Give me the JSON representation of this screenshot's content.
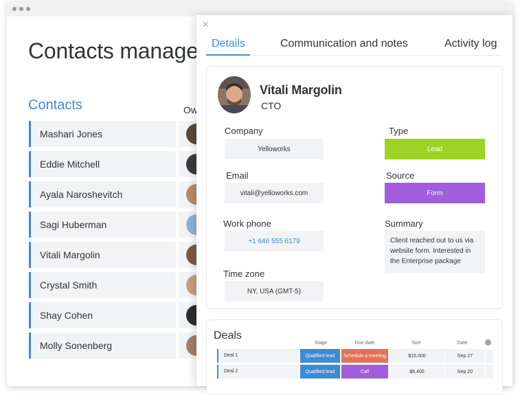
{
  "app": {
    "page_title": "Contacts manager"
  },
  "contacts": {
    "heading": "Contacts",
    "owner_column": "Ow",
    "items": [
      {
        "name": "Mashari Jones",
        "avatar_color": "#5b4a3c"
      },
      {
        "name": "Eddie Mitchell",
        "avatar_color": "#3a3a3a"
      },
      {
        "name": "Ayala Naroshevitch",
        "avatar_color": "#b98a6a"
      },
      {
        "name": "Sagi Huberman",
        "avatar_color": "#8fb2d6"
      },
      {
        "name": "Vitali Margolin",
        "avatar_color": "#7a5a48"
      },
      {
        "name": "Crystal Smith",
        "avatar_color": "#c79f85"
      },
      {
        "name": "Shay Cohen",
        "avatar_color": "#2d2d2d"
      },
      {
        "name": "Molly Sonenberg",
        "avatar_color": "#a47e68"
      }
    ]
  },
  "panel": {
    "close_glyph": "✕",
    "tabs": [
      {
        "label": "Details",
        "active": true
      },
      {
        "label": "Communication and notes",
        "active": false
      },
      {
        "label": "Activity log",
        "active": false
      }
    ],
    "person": {
      "name": "Vitali Margolin",
      "role": "CTO"
    },
    "fields": {
      "company": {
        "label": "Company",
        "value": "Yelloworks"
      },
      "type": {
        "label": "Type",
        "value": "Lead",
        "color": "#9cd326"
      },
      "email": {
        "label": "Email",
        "value": "vitali@yelloworks.com"
      },
      "source": {
        "label": "Source",
        "value": "Form",
        "color": "#a25ddc"
      },
      "work_phone": {
        "label": "Work phone",
        "value": "+1 646 555 6179"
      },
      "summary": {
        "label": "Summary",
        "value": "Client reached out to us via website form. Interested in the Enterprise package"
      },
      "time_zone": {
        "label": "Time zone",
        "value": "NY, USA (GMT-5)"
      }
    },
    "deals": {
      "title": "Deals",
      "columns": [
        "Stage",
        "Due date",
        "Size",
        "Date"
      ],
      "rows": [
        {
          "name": "Deal 1",
          "stage": "Qualified lead",
          "stage_color": "#3d8bd1",
          "due": "Schedule a meeting",
          "due_color": "#e2725b",
          "size": "$15,000",
          "date": "Sep 27"
        },
        {
          "name": "Deal 2",
          "stage": "Qualified lead",
          "stage_color": "#3d8bd1",
          "due": "Call",
          "due_color": "#a25ddc",
          "size": "$8,400",
          "date": "Sep 20"
        }
      ]
    }
  }
}
